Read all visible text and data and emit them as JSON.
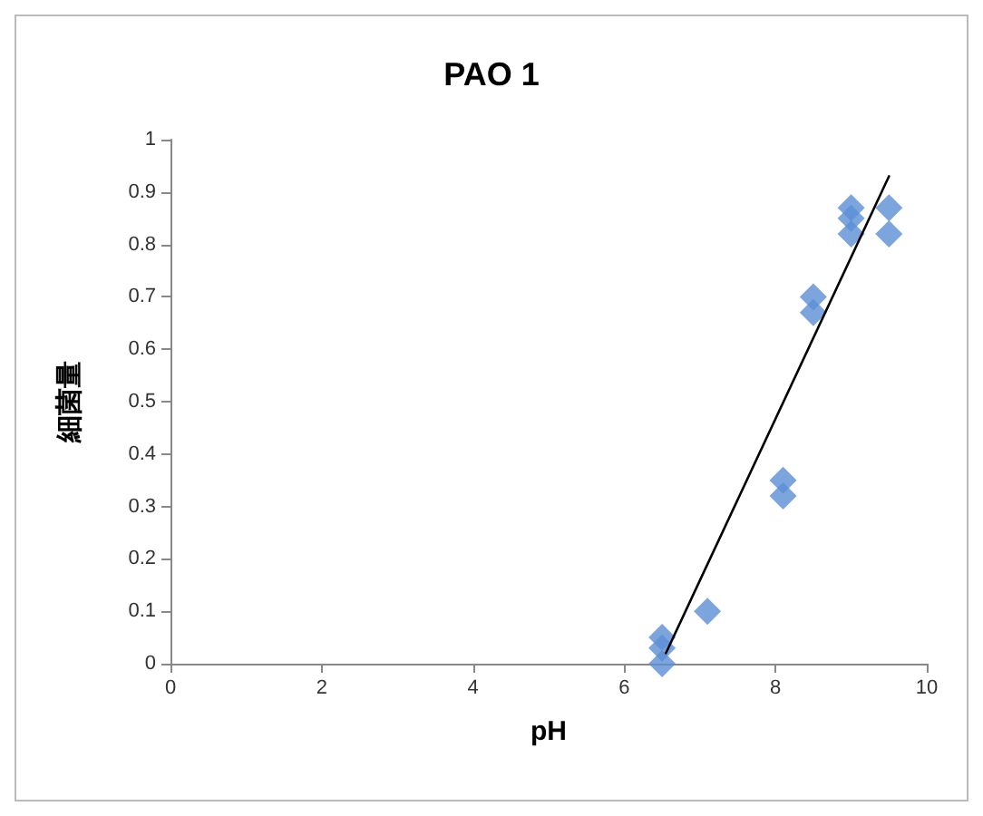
{
  "chart_data": {
    "type": "scatter",
    "title": "PAO 1",
    "xlabel": "pH",
    "ylabel": "細菌量",
    "xlim": [
      0,
      10
    ],
    "xticks": [
      0,
      2,
      4,
      6,
      8,
      10
    ],
    "ylim": [
      0,
      1
    ],
    "yticks": [
      0,
      0.1,
      0.2,
      0.3,
      0.4,
      0.5,
      0.6,
      0.7,
      0.8,
      0.9,
      1
    ],
    "grid": false,
    "marker": "diamond",
    "series": [
      {
        "color": "#5b8fd6",
        "x": [
          6.5,
          6.5,
          6.5,
          7.1,
          8.1,
          8.1,
          8.5,
          8.5,
          9,
          9,
          9,
          9.5,
          9.5
        ],
        "values": [
          0.05,
          0.03,
          0,
          0.1,
          0.35,
          0.32,
          0.7,
          0.67,
          0.87,
          0.85,
          0.82,
          0.87,
          0.82
        ]
      },
      {
        "type": "line",
        "color": "#000000",
        "x": [
          6.55,
          9.5
        ],
        "values": [
          0.02,
          0.93
        ],
        "marker": "none",
        "line_style": "solid"
      }
    ]
  }
}
